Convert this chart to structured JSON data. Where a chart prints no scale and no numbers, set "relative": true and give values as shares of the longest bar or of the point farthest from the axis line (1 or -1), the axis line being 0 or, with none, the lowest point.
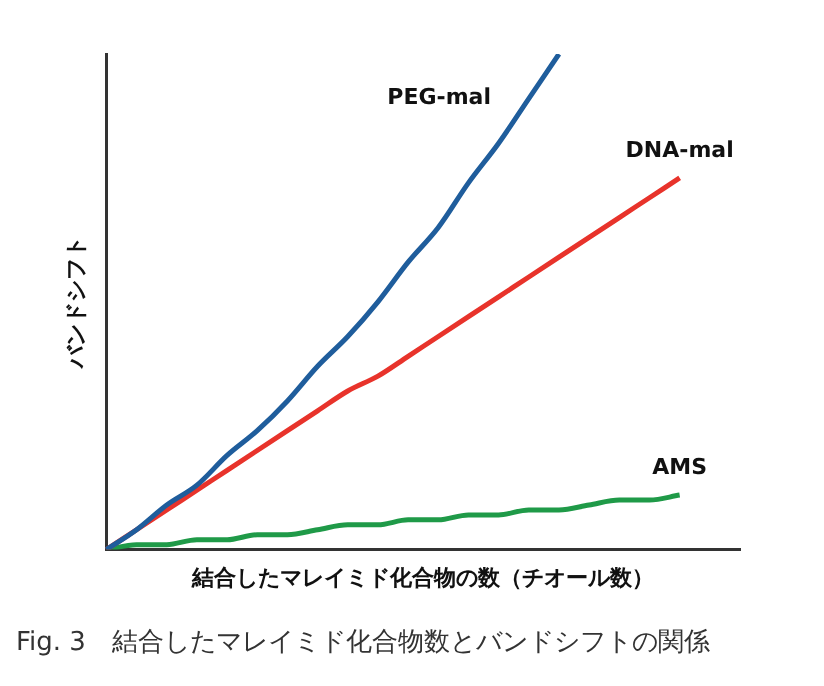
{
  "chart_data": {
    "type": "line",
    "relative": true,
    "xlabel": "結合したマレイミド化合物の数（チオール数）",
    "ylabel": "バンドシフト",
    "annotations": [
      "Fig. 3　結合したマレイミド化合物数とバンドシフトの関係"
    ],
    "grid": false,
    "legend": false,
    "marker": "none",
    "line_style": "solid",
    "categories": [
      null,
      null,
      null,
      null,
      null,
      null,
      null,
      null,
      null,
      null,
      null,
      null,
      null,
      null,
      null,
      null,
      null,
      null,
      null,
      null,
      null,
      null
    ],
    "series": [
      {
        "name": "PEG-mal",
        "color": "#1f5d9c",
        "values": [
          0,
          0.04,
          0.09,
          0.13,
          0.19,
          0.24,
          0.3,
          0.37,
          0.43,
          0.5,
          0.58,
          0.65,
          0.74,
          0.82,
          0.91,
          1,
          null,
          null,
          null,
          null,
          null,
          null
        ]
      },
      {
        "name": "DNA-mal",
        "color": "#e8332b",
        "values": [
          0,
          0.04,
          0.08,
          0.12,
          0.16,
          0.2,
          0.24,
          0.28,
          0.32,
          0.35,
          0.39,
          0.43,
          0.47,
          0.51,
          0.55,
          0.59,
          0.63,
          0.67,
          0.71,
          0.75,
          null,
          null
        ]
      },
      {
        "name": "AMS",
        "color": "#1f9a48",
        "values": [
          0,
          0.01,
          0.01,
          0.02,
          0.02,
          0.03,
          0.03,
          0.04,
          0.05,
          0.05,
          0.06,
          0.06,
          0.07,
          0.07,
          0.08,
          0.08,
          0.09,
          0.1,
          0.1,
          0.11,
          null,
          null
        ]
      }
    ]
  }
}
